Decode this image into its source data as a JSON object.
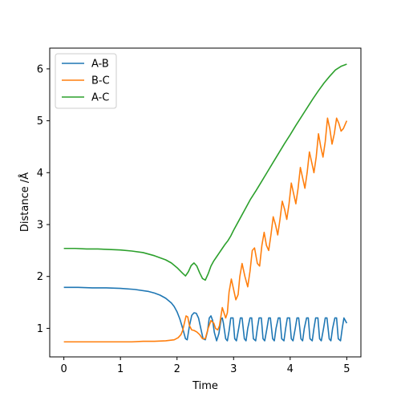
{
  "chart_data": {
    "type": "line",
    "title": "",
    "xlabel": "Time",
    "ylabel": "Distance /Å",
    "xlim": [
      -0.25,
      5.25
    ],
    "ylim": [
      0.45,
      6.4
    ],
    "xticks": [
      0,
      1,
      2,
      3,
      4,
      5
    ],
    "yticks": [
      1,
      2,
      3,
      4,
      5,
      6
    ],
    "grid": false,
    "legend_position": "top-left",
    "series": [
      {
        "name": "A-B",
        "color": "#1f77b4",
        "x": [
          0,
          0.25,
          0.5,
          0.75,
          1,
          1.25,
          1.5,
          1.6,
          1.7,
          1.8,
          1.9,
          1.95,
          2.0,
          2.05,
          2.1,
          2.15,
          2.18,
          2.22,
          2.26,
          2.3,
          2.34,
          2.38,
          2.42,
          2.46,
          2.5,
          2.54,
          2.57,
          2.6,
          2.63,
          2.66,
          2.7,
          2.74,
          2.78,
          2.8,
          2.82,
          2.86,
          2.89,
          2.92,
          2.95,
          2.99,
          3.02,
          3.05,
          3.09,
          3.12,
          3.15,
          3.19,
          3.22,
          3.25,
          3.29,
          3.32,
          3.35,
          3.39,
          3.42,
          3.45,
          3.49,
          3.52,
          3.55,
          3.59,
          3.62,
          3.65,
          3.69,
          3.72,
          3.75,
          3.79,
          3.82,
          3.85,
          3.89,
          3.92,
          3.95,
          3.99,
          4.02,
          4.05,
          4.09,
          4.12,
          4.15,
          4.19,
          4.22,
          4.25,
          4.29,
          4.32,
          4.35,
          4.39,
          4.42,
          4.45,
          4.49,
          4.52,
          4.55,
          4.59,
          4.62,
          4.65,
          4.69,
          4.72,
          4.75,
          4.79,
          4.82,
          4.85,
          4.89,
          4.92,
          4.95,
          5.0
        ],
        "y": [
          1.79,
          1.79,
          1.78,
          1.78,
          1.77,
          1.75,
          1.71,
          1.68,
          1.64,
          1.58,
          1.49,
          1.42,
          1.32,
          1.18,
          1.0,
          0.8,
          0.78,
          1.05,
          1.25,
          1.3,
          1.29,
          1.2,
          1.0,
          0.8,
          0.78,
          0.95,
          1.2,
          1.24,
          1.15,
          0.92,
          0.76,
          0.9,
          1.18,
          1.2,
          1.1,
          0.8,
          0.76,
          0.95,
          1.2,
          1.2,
          0.8,
          0.76,
          1.0,
          1.2,
          1.2,
          0.8,
          0.76,
          1.0,
          1.2,
          1.2,
          0.8,
          0.76,
          1.0,
          1.2,
          1.2,
          0.8,
          0.76,
          1.0,
          1.2,
          1.2,
          0.8,
          0.76,
          1.0,
          1.2,
          1.2,
          0.8,
          0.76,
          1.0,
          1.2,
          1.2,
          0.8,
          0.76,
          1.0,
          1.2,
          1.2,
          0.8,
          0.76,
          1.0,
          1.2,
          1.2,
          0.8,
          0.76,
          1.0,
          1.2,
          1.2,
          0.8,
          0.76,
          1.0,
          1.2,
          1.2,
          0.8,
          0.76,
          1.0,
          1.2,
          1.2,
          0.8,
          0.76,
          1.0,
          1.2,
          1.1
        ]
      },
      {
        "name": "B-C",
        "color": "#ff7f0e",
        "x": [
          0,
          0.2,
          0.4,
          0.6,
          0.8,
          1.0,
          1.2,
          1.4,
          1.6,
          1.8,
          1.95,
          2.02,
          2.07,
          2.1,
          2.13,
          2.16,
          2.19,
          2.22,
          2.26,
          2.3,
          2.35,
          2.4,
          2.45,
          2.5,
          2.55,
          2.6,
          2.65,
          2.68,
          2.72,
          2.75,
          2.8,
          2.86,
          2.89,
          2.92,
          2.96,
          2.99,
          3.04,
          3.08,
          3.11,
          3.15,
          3.2,
          3.25,
          3.29,
          3.33,
          3.37,
          3.42,
          3.46,
          3.5,
          3.54,
          3.58,
          3.62,
          3.66,
          3.7,
          3.74,
          3.78,
          3.82,
          3.86,
          3.9,
          3.94,
          3.98,
          4.02,
          4.06,
          4.1,
          4.14,
          4.18,
          4.22,
          4.26,
          4.3,
          4.34,
          4.38,
          4.42,
          4.46,
          4.5,
          4.54,
          4.58,
          4.62,
          4.66,
          4.7,
          4.74,
          4.78,
          4.82,
          4.86,
          4.9,
          4.94,
          4.98,
          5.0
        ],
        "y": [
          0.74,
          0.74,
          0.74,
          0.74,
          0.74,
          0.74,
          0.74,
          0.75,
          0.75,
          0.76,
          0.78,
          0.82,
          0.88,
          0.96,
          1.1,
          1.24,
          1.22,
          1.05,
          0.97,
          0.96,
          0.93,
          0.88,
          0.8,
          0.8,
          1.0,
          1.15,
          1.1,
          1.0,
          0.97,
          1.05,
          1.4,
          1.2,
          1.3,
          1.7,
          1.95,
          1.8,
          1.55,
          1.65,
          2.0,
          2.25,
          2.0,
          1.8,
          2.1,
          2.5,
          2.55,
          2.25,
          2.2,
          2.6,
          2.85,
          2.6,
          2.5,
          2.8,
          3.15,
          3.0,
          2.8,
          3.1,
          3.45,
          3.3,
          3.1,
          3.4,
          3.8,
          3.6,
          3.4,
          3.7,
          4.1,
          3.9,
          3.7,
          4.0,
          4.4,
          4.2,
          4.0,
          4.3,
          4.75,
          4.5,
          4.3,
          4.6,
          5.05,
          4.85,
          4.55,
          4.75,
          5.05,
          4.95,
          4.8,
          4.85,
          4.95,
          5.0
        ]
      },
      {
        "name": "A-C",
        "color": "#2ca02c",
        "x": [
          0,
          0.2,
          0.4,
          0.6,
          0.8,
          1.0,
          1.2,
          1.4,
          1.6,
          1.8,
          1.9,
          2.0,
          2.1,
          2.15,
          2.2,
          2.25,
          2.3,
          2.35,
          2.4,
          2.45,
          2.5,
          2.55,
          2.6,
          2.65,
          2.7,
          2.75,
          2.8,
          2.85,
          2.9,
          2.95,
          3.0,
          3.1,
          3.2,
          3.3,
          3.4,
          3.5,
          3.6,
          3.7,
          3.8,
          3.9,
          4.0,
          4.1,
          4.2,
          4.3,
          4.4,
          4.5,
          4.6,
          4.7,
          4.8,
          4.9,
          5.0
        ],
        "y": [
          2.54,
          2.54,
          2.53,
          2.53,
          2.52,
          2.51,
          2.49,
          2.46,
          2.4,
          2.32,
          2.26,
          2.17,
          2.06,
          2.01,
          2.09,
          2.21,
          2.26,
          2.2,
          2.07,
          1.96,
          1.93,
          2.05,
          2.2,
          2.3,
          2.38,
          2.46,
          2.54,
          2.62,
          2.69,
          2.78,
          2.89,
          3.09,
          3.29,
          3.49,
          3.66,
          3.84,
          4.02,
          4.2,
          4.38,
          4.56,
          4.73,
          4.91,
          5.08,
          5.25,
          5.42,
          5.58,
          5.73,
          5.86,
          5.98,
          6.05,
          6.09
        ]
      }
    ]
  }
}
